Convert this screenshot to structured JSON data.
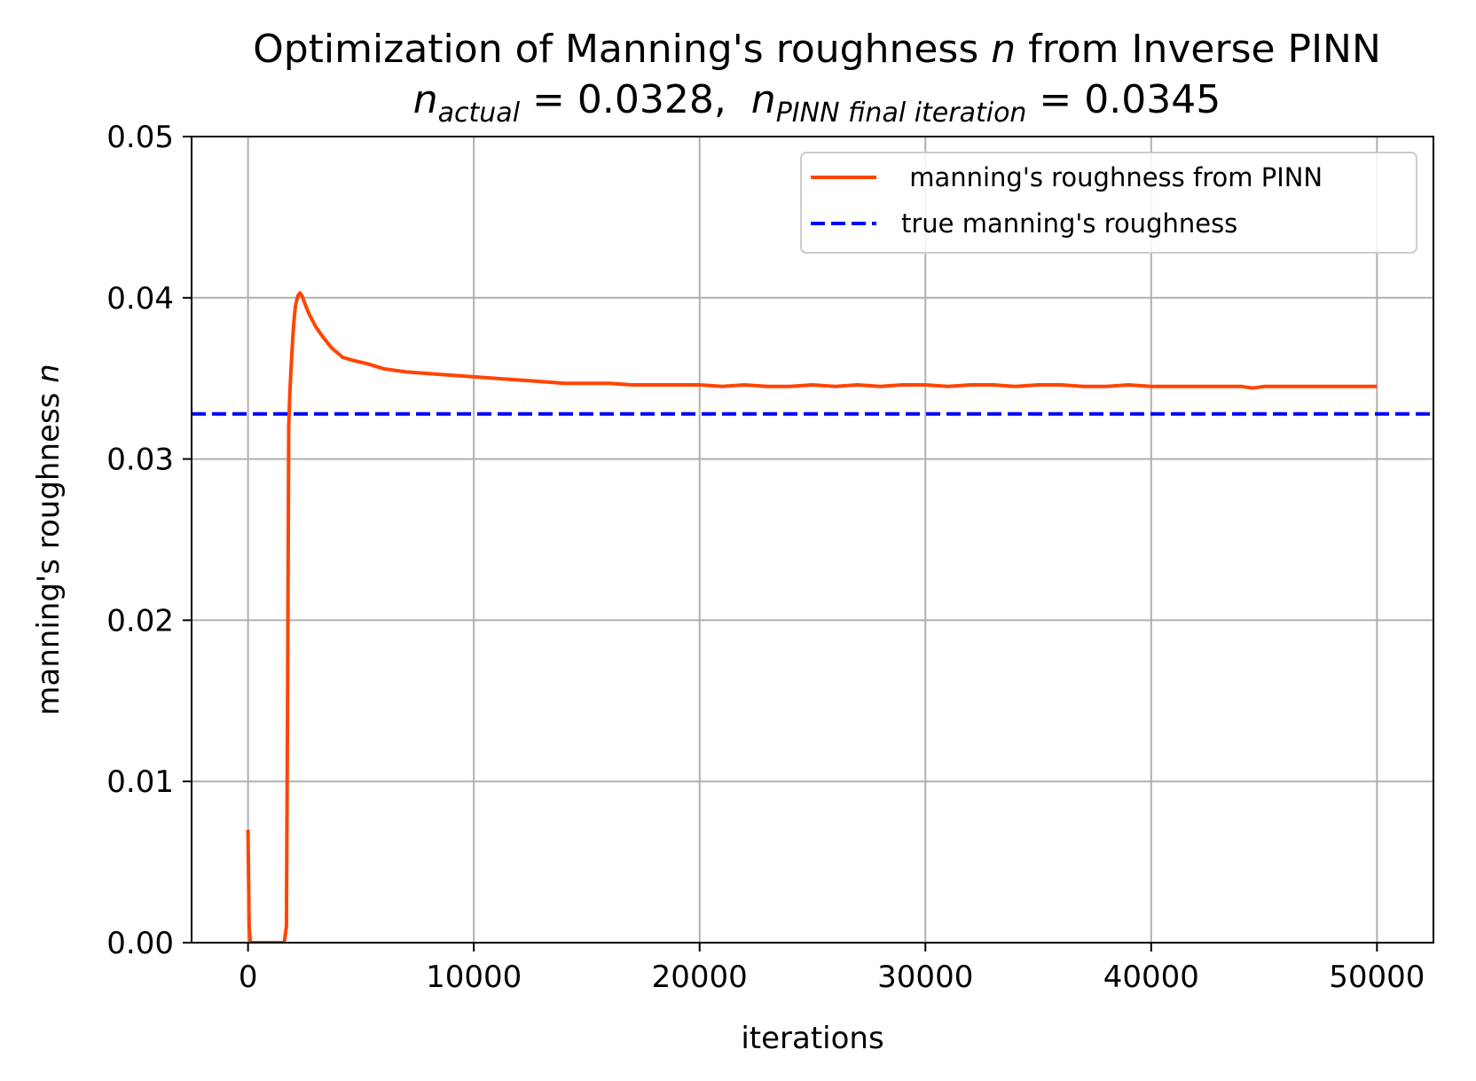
{
  "chart_data": {
    "type": "line",
    "title": {
      "line1_a": "Optimization of Manning's roughness ",
      "line1_var": "n",
      "line1_b": " from Inverse PINN",
      "line2_var1": "n",
      "line2_sub1": "actual",
      "line2_eq1": " = 0.0328,  ",
      "line2_var2": "n",
      "line2_sub2": "PINN final iteration",
      "line2_eq2": " = 0.0345"
    },
    "xlabel": "iterations",
    "ylabel": "manning's roughness ",
    "ylabel_var": "n",
    "xlim": [
      -2500,
      52500
    ],
    "ylim": [
      0.0,
      0.05
    ],
    "xticks": [
      0,
      10000,
      20000,
      30000,
      40000,
      50000
    ],
    "xtick_labels": [
      "0",
      "10000",
      "20000",
      "30000",
      "40000",
      "50000"
    ],
    "yticks": [
      0.0,
      0.01,
      0.02,
      0.03,
      0.04,
      0.05
    ],
    "ytick_labels": [
      "0.00",
      "0.01",
      "0.02",
      "0.03",
      "0.04",
      "0.05"
    ],
    "grid": true,
    "legend_position": "upper right",
    "series": [
      {
        "name": " manning's roughness from PINN",
        "style": "solid",
        "color": "#ff4500",
        "x": [
          0,
          50,
          100,
          150,
          1600,
          1700,
          1750,
          1800,
          1850,
          1900,
          1950,
          2000,
          2050,
          2100,
          2200,
          2300,
          2400,
          2500,
          2700,
          3000,
          3300,
          3700,
          4200,
          4700,
          5300,
          6000,
          7000,
          8000,
          9000,
          10000,
          11000,
          12000,
          13000,
          14000,
          15000,
          16000,
          17000,
          18000,
          19000,
          20000,
          21000,
          22000,
          23000,
          24000,
          25000,
          26000,
          27000,
          28000,
          29000,
          30000,
          31000,
          32000,
          33000,
          34000,
          35000,
          36000,
          37000,
          38000,
          39000,
          40000,
          41000,
          42000,
          43000,
          44000,
          44500,
          45000,
          45500,
          46000,
          47000,
          48000,
          49000,
          50000
        ],
        "y": [
          0.007,
          0.001,
          0.0,
          0.0,
          0.0,
          0.001,
          0.015,
          0.032,
          0.034,
          0.0355,
          0.0368,
          0.0379,
          0.0388,
          0.0395,
          0.0401,
          0.0403,
          0.0401,
          0.0397,
          0.039,
          0.0382,
          0.0376,
          0.0369,
          0.0363,
          0.0361,
          0.0359,
          0.0356,
          0.0354,
          0.0353,
          0.0352,
          0.0351,
          0.035,
          0.0349,
          0.0348,
          0.0347,
          0.0347,
          0.0347,
          0.0346,
          0.0346,
          0.0346,
          0.0346,
          0.0345,
          0.0346,
          0.0345,
          0.0345,
          0.0346,
          0.0345,
          0.0346,
          0.0345,
          0.0346,
          0.0346,
          0.0345,
          0.0346,
          0.0346,
          0.0345,
          0.0346,
          0.0346,
          0.0345,
          0.0345,
          0.0346,
          0.0345,
          0.0345,
          0.0345,
          0.0345,
          0.0345,
          0.0344,
          0.0345,
          0.0345,
          0.0345,
          0.0345,
          0.0345,
          0.0345,
          0.0345
        ]
      },
      {
        "name": "true manning's roughness",
        "style": "dashed",
        "color": "#0000ff",
        "x": [
          -2500,
          52500
        ],
        "y": [
          0.0328,
          0.0328
        ]
      }
    ]
  }
}
